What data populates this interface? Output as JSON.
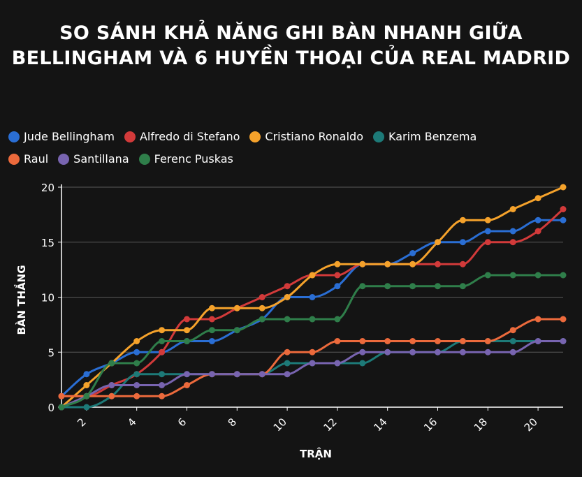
{
  "title_line1": "SO SÁNH KHẢ NĂNG GHI BÀN NHANH GIỮA",
  "title_line2": "BELLINGHAM VÀ 6 HUYỀN THOẠI CỦA REAL MADRID",
  "chart_data": {
    "type": "line",
    "title": "SO SÁNH KHẢ NĂNG GHI BÀN NHANH GIỮA BELLINGHAM VÀ 6 HUYỀN THOẠI CỦA REAL MADRID",
    "xlabel": "TRẬN",
    "ylabel": "BÀN THẮNG",
    "xlim": [
      1,
      21
    ],
    "ylim": [
      0,
      20
    ],
    "xticks": [
      2,
      4,
      6,
      8,
      10,
      12,
      14,
      16,
      18,
      20
    ],
    "yticks": [
      0,
      5,
      10,
      15,
      20
    ],
    "grid": "horizontal",
    "legend_position": "top-left",
    "x": [
      1,
      2,
      3,
      4,
      5,
      6,
      7,
      8,
      9,
      10,
      11,
      12,
      13,
      14,
      15,
      16,
      17,
      18,
      19,
      20,
      21
    ],
    "series": [
      {
        "name": "Jude Bellingham",
        "color": "#2a6ed4",
        "values": [
          1,
          3,
          4,
          5,
          5,
          6,
          6,
          7,
          8,
          10,
          10,
          11,
          13,
          13,
          14,
          15,
          15,
          16,
          16,
          17,
          17
        ]
      },
      {
        "name": "Alfredo di Stefano",
        "color": "#d23a3a",
        "values": [
          1,
          1,
          2,
          3,
          5,
          8,
          8,
          9,
          10,
          11,
          12,
          12,
          13,
          13,
          13,
          13,
          13,
          15,
          15,
          16,
          18
        ]
      },
      {
        "name": "Cristiano Ronaldo",
        "color": "#f5a22b",
        "values": [
          0,
          2,
          4,
          6,
          7,
          7,
          9,
          9,
          9,
          10,
          12,
          13,
          13,
          13,
          13,
          15,
          17,
          17,
          18,
          19,
          20
        ]
      },
      {
        "name": "Karim Benzema",
        "color": "#1d7a78",
        "values": [
          0,
          0,
          1,
          3,
          3,
          3,
          3,
          3,
          3,
          4,
          4,
          4,
          4,
          5,
          5,
          5,
          6,
          6,
          6,
          6,
          6
        ]
      },
      {
        "name": "Raul",
        "color": "#ec6a3c",
        "values": [
          1,
          1,
          1,
          1,
          1,
          2,
          3,
          3,
          3,
          5,
          5,
          6,
          6,
          6,
          6,
          6,
          6,
          6,
          7,
          8,
          8
        ]
      },
      {
        "name": "Santillana",
        "color": "#7864b0",
        "values": [
          0,
          1,
          2,
          2,
          2,
          3,
          3,
          3,
          3,
          3,
          4,
          4,
          5,
          5,
          5,
          5,
          5,
          5,
          5,
          6,
          6
        ]
      },
      {
        "name": "Ferenc Puskas",
        "color": "#2f7e4a",
        "values": [
          0,
          1,
          4,
          4,
          6,
          6,
          7,
          7,
          8,
          8,
          8,
          8,
          11,
          11,
          11,
          11,
          11,
          12,
          12,
          12,
          12
        ]
      }
    ]
  }
}
